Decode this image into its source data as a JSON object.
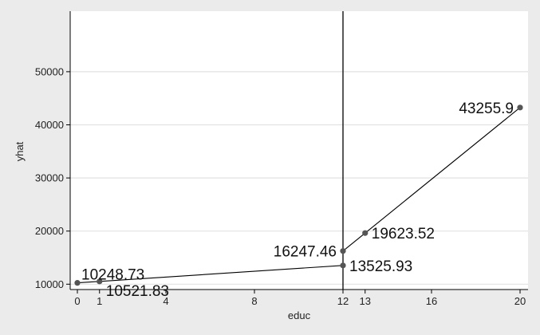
{
  "chart_data": {
    "type": "line",
    "xlabel": "educ",
    "ylabel": "yhat",
    "xlim": [
      0,
      20
    ],
    "ylim": [
      5000,
      55000
    ],
    "x_ticks": [
      0,
      1,
      4,
      8,
      12,
      13,
      16,
      20
    ],
    "y_ticks": [
      10000,
      20000,
      30000,
      40000,
      50000
    ],
    "grid": true,
    "vline_x": 12,
    "series": [
      {
        "segments": [
          [
            {
              "x": 0,
              "y": 10248.73,
              "label": "10248.73",
              "label_pos": "above-right"
            },
            {
              "x": 1,
              "y": 10521.83,
              "label": "10521.83",
              "label_pos": "below-right"
            },
            {
              "x": 12,
              "y": 13525.93,
              "label": "13525.93",
              "label_pos": "right"
            }
          ],
          [
            {
              "x": 12,
              "y": 16247.46,
              "label": "16247.46",
              "label_pos": "left"
            },
            {
              "x": 13,
              "y": 19623.52,
              "label": "19623.52",
              "label_pos": "right"
            },
            {
              "x": 20,
              "y": 43255.9,
              "label": "43255.9",
              "label_pos": "left"
            }
          ]
        ]
      }
    ]
  }
}
